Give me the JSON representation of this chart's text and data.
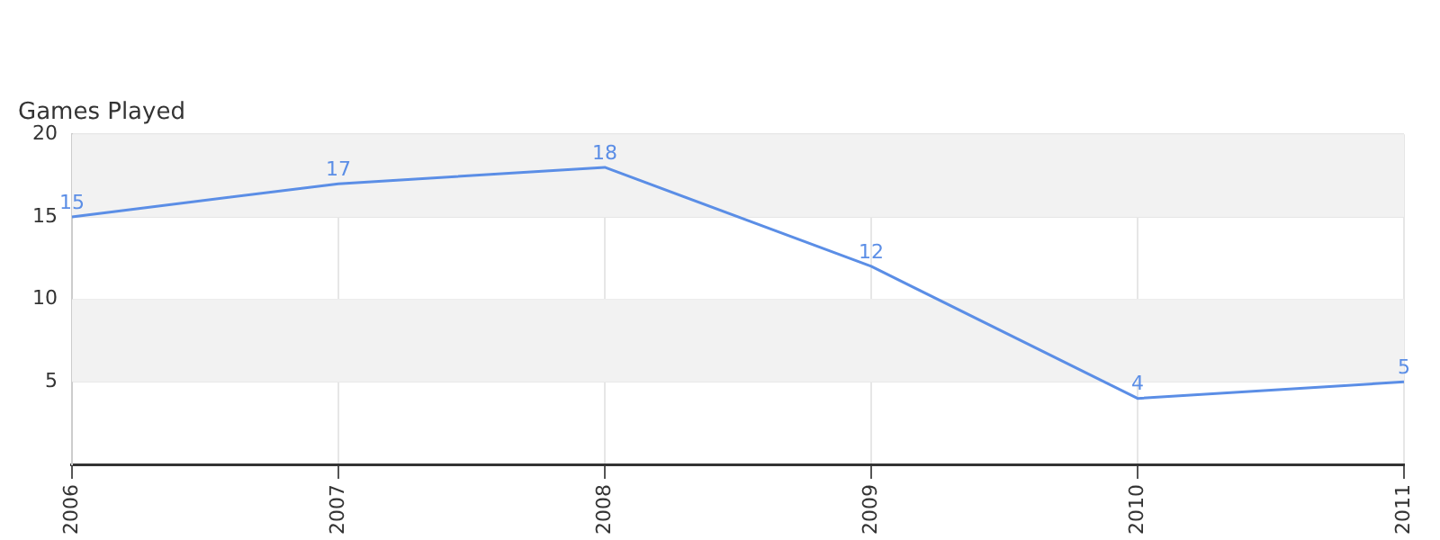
{
  "chart_data": {
    "type": "line",
    "title": "Games Played",
    "categories": [
      "2006",
      "2007",
      "2008",
      "2009",
      "2010",
      "2011"
    ],
    "series": [
      {
        "color": "#5b8ee6",
        "values": [
          15,
          17,
          18,
          12,
          4,
          5
        ]
      }
    ],
    "ylim": [
      0,
      20
    ],
    "yticks": [
      5,
      10,
      15,
      20
    ],
    "grid": true,
    "data_labels": true,
    "marker": "none",
    "legend": false,
    "bands": [
      {
        "axis": "y",
        "from": 5,
        "to": 10,
        "color": "#f2f2f2"
      },
      {
        "axis": "y",
        "from": 15,
        "to": 20,
        "color": "#f2f2f2"
      }
    ]
  }
}
